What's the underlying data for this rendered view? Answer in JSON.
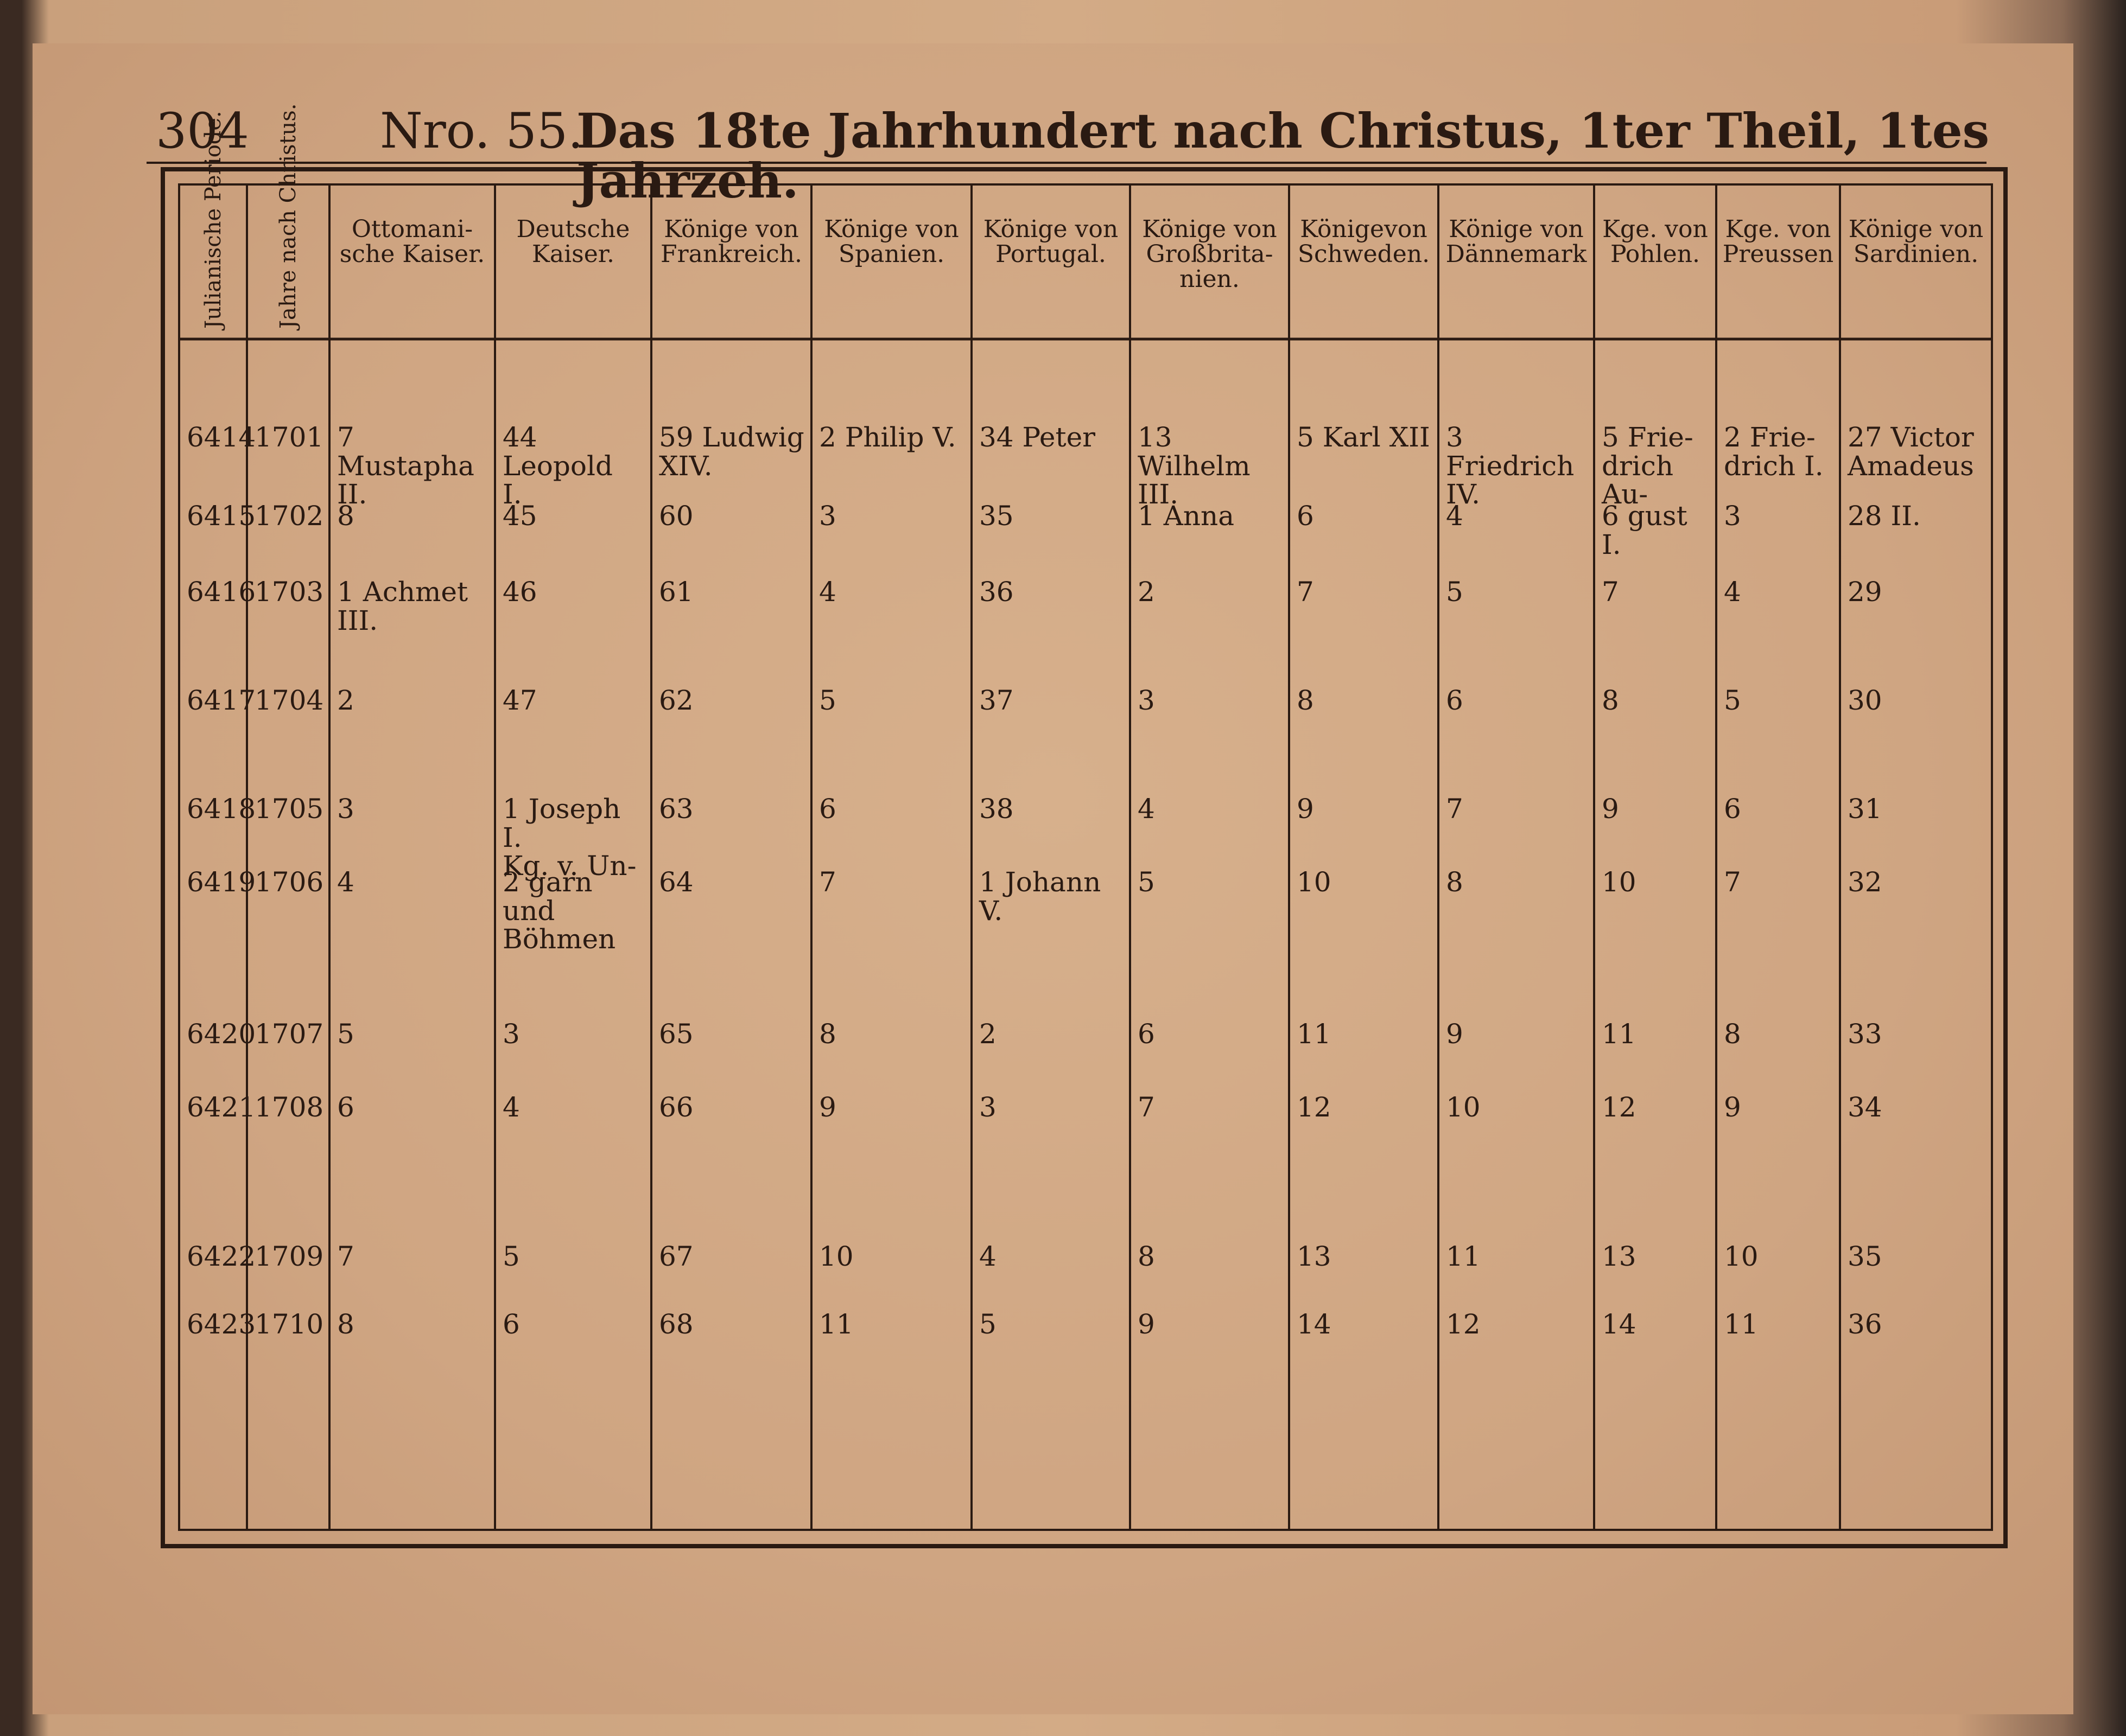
{
  "page_number": "304",
  "header": {
    "number": "Nro. 55.",
    "title": "Das 18te Jahrhundert nach Christus, 1ter Theil, 1tes Jahrzeh."
  },
  "table": {
    "columns": [
      "Julianische Periode.",
      "Jahre nach Christus.",
      "Ottomani-\nsche Kaiser.",
      "Deutsche\nKaiser.",
      "Könige von\nFrankreich.",
      "Könige von\nSpanien.",
      "Könige von\nPortugal.",
      "Könige von\nGroßbrita-\nnien.",
      "Königevon\nSchweden.",
      "Könige von\nDännemark",
      "Kge. von\nPohlen.",
      "Kge. von\nPreussen",
      "Könige von\nSardinien."
    ],
    "rows": [
      [
        "6414",
        "1701",
        "7 Mustapha\nII.",
        "44 Leopold\nI.",
        "59 Ludwig\nXIV.",
        "2 Philip V.",
        "34 Peter",
        "13 Wilhelm\nIII.",
        "5 Karl XII",
        "3 Friedrich\nIV.",
        "5 Frie-\ndrich Au-",
        "2 Frie-\ndrich I.",
        "27 Victor\nAmadeus"
      ],
      [
        "6415",
        "1702",
        "8",
        "45",
        "60",
        "3",
        "35",
        "1 Anna",
        "6",
        "4",
        "6 gust I.",
        "3",
        "28 II."
      ],
      [
        "6416",
        "1703",
        "1 Achmet\nIII.",
        "46",
        "61",
        "4",
        "36",
        "2",
        "7",
        "5",
        "7",
        "4",
        "29"
      ],
      [
        "6417",
        "1704",
        "2",
        "47",
        "62",
        "5",
        "37",
        "3",
        "8",
        "6",
        "8",
        "5",
        "30"
      ],
      [
        "6418",
        "1705",
        "3",
        "1 Joseph I.\nKg. v. Un-",
        "63",
        "6",
        "38",
        "4",
        "9",
        "7",
        "9",
        "6",
        "31"
      ],
      [
        "6419",
        "1706",
        "4",
        "2 garn und\nBöhmen",
        "64",
        "7",
        "1 Johann\nV.",
        "5",
        "10",
        "8",
        "10",
        "7",
        "32"
      ],
      [
        "6420",
        "1707",
        "5",
        "3",
        "65",
        "8",
        "2",
        "6",
        "11",
        "9",
        "11",
        "8",
        "33"
      ],
      [
        "6421",
        "1708",
        "6",
        "4",
        "66",
        "9",
        "3",
        "7",
        "12",
        "10",
        "12",
        "9",
        "34"
      ],
      [
        "6422",
        "1709",
        "7",
        "5",
        "67",
        "10",
        "4",
        "8",
        "13",
        "11",
        "13",
        "10",
        "35"
      ],
      [
        "6423",
        "1710",
        "8",
        "6",
        "68",
        "11",
        "5",
        "9",
        "14",
        "12",
        "14",
        "11",
        "36"
      ]
    ]
  }
}
